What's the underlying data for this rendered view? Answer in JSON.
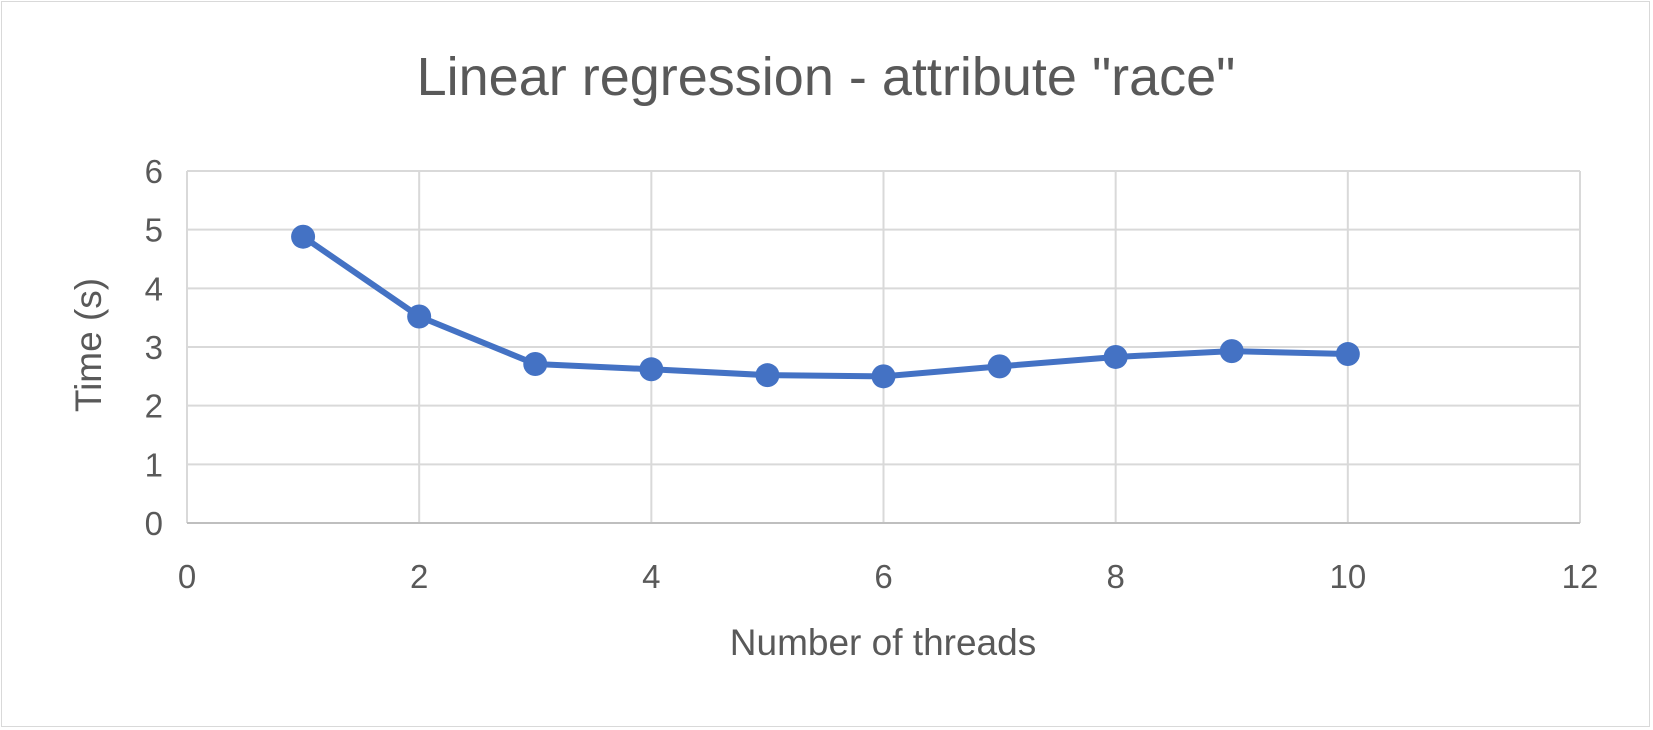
{
  "chart_data": {
    "type": "scatter",
    "title": "Linear regression - attribute \"race\"",
    "xlabel": "Number of threads",
    "ylabel": "Time (s)",
    "xlim": [
      0,
      12
    ],
    "ylim": [
      0,
      6
    ],
    "x_ticks": [
      "0",
      "2",
      "4",
      "6",
      "8",
      "10",
      "12"
    ],
    "y_ticks": [
      "0",
      "1",
      "2",
      "3",
      "4",
      "5",
      "6"
    ],
    "grid": true,
    "legend": "none",
    "series": [
      {
        "color": "#4472c4",
        "marker": "circle",
        "line": "straight",
        "points": [
          {
            "x": 1,
            "y": 4.88
          },
          {
            "x": 2,
            "y": 3.52
          },
          {
            "x": 3,
            "y": 2.71
          },
          {
            "x": 4,
            "y": 2.62
          },
          {
            "x": 5,
            "y": 2.52
          },
          {
            "x": 6,
            "y": 2.5
          },
          {
            "x": 7,
            "y": 2.67
          },
          {
            "x": 8,
            "y": 2.83
          },
          {
            "x": 9,
            "y": 2.93
          },
          {
            "x": 10,
            "y": 2.88
          }
        ]
      }
    ]
  }
}
